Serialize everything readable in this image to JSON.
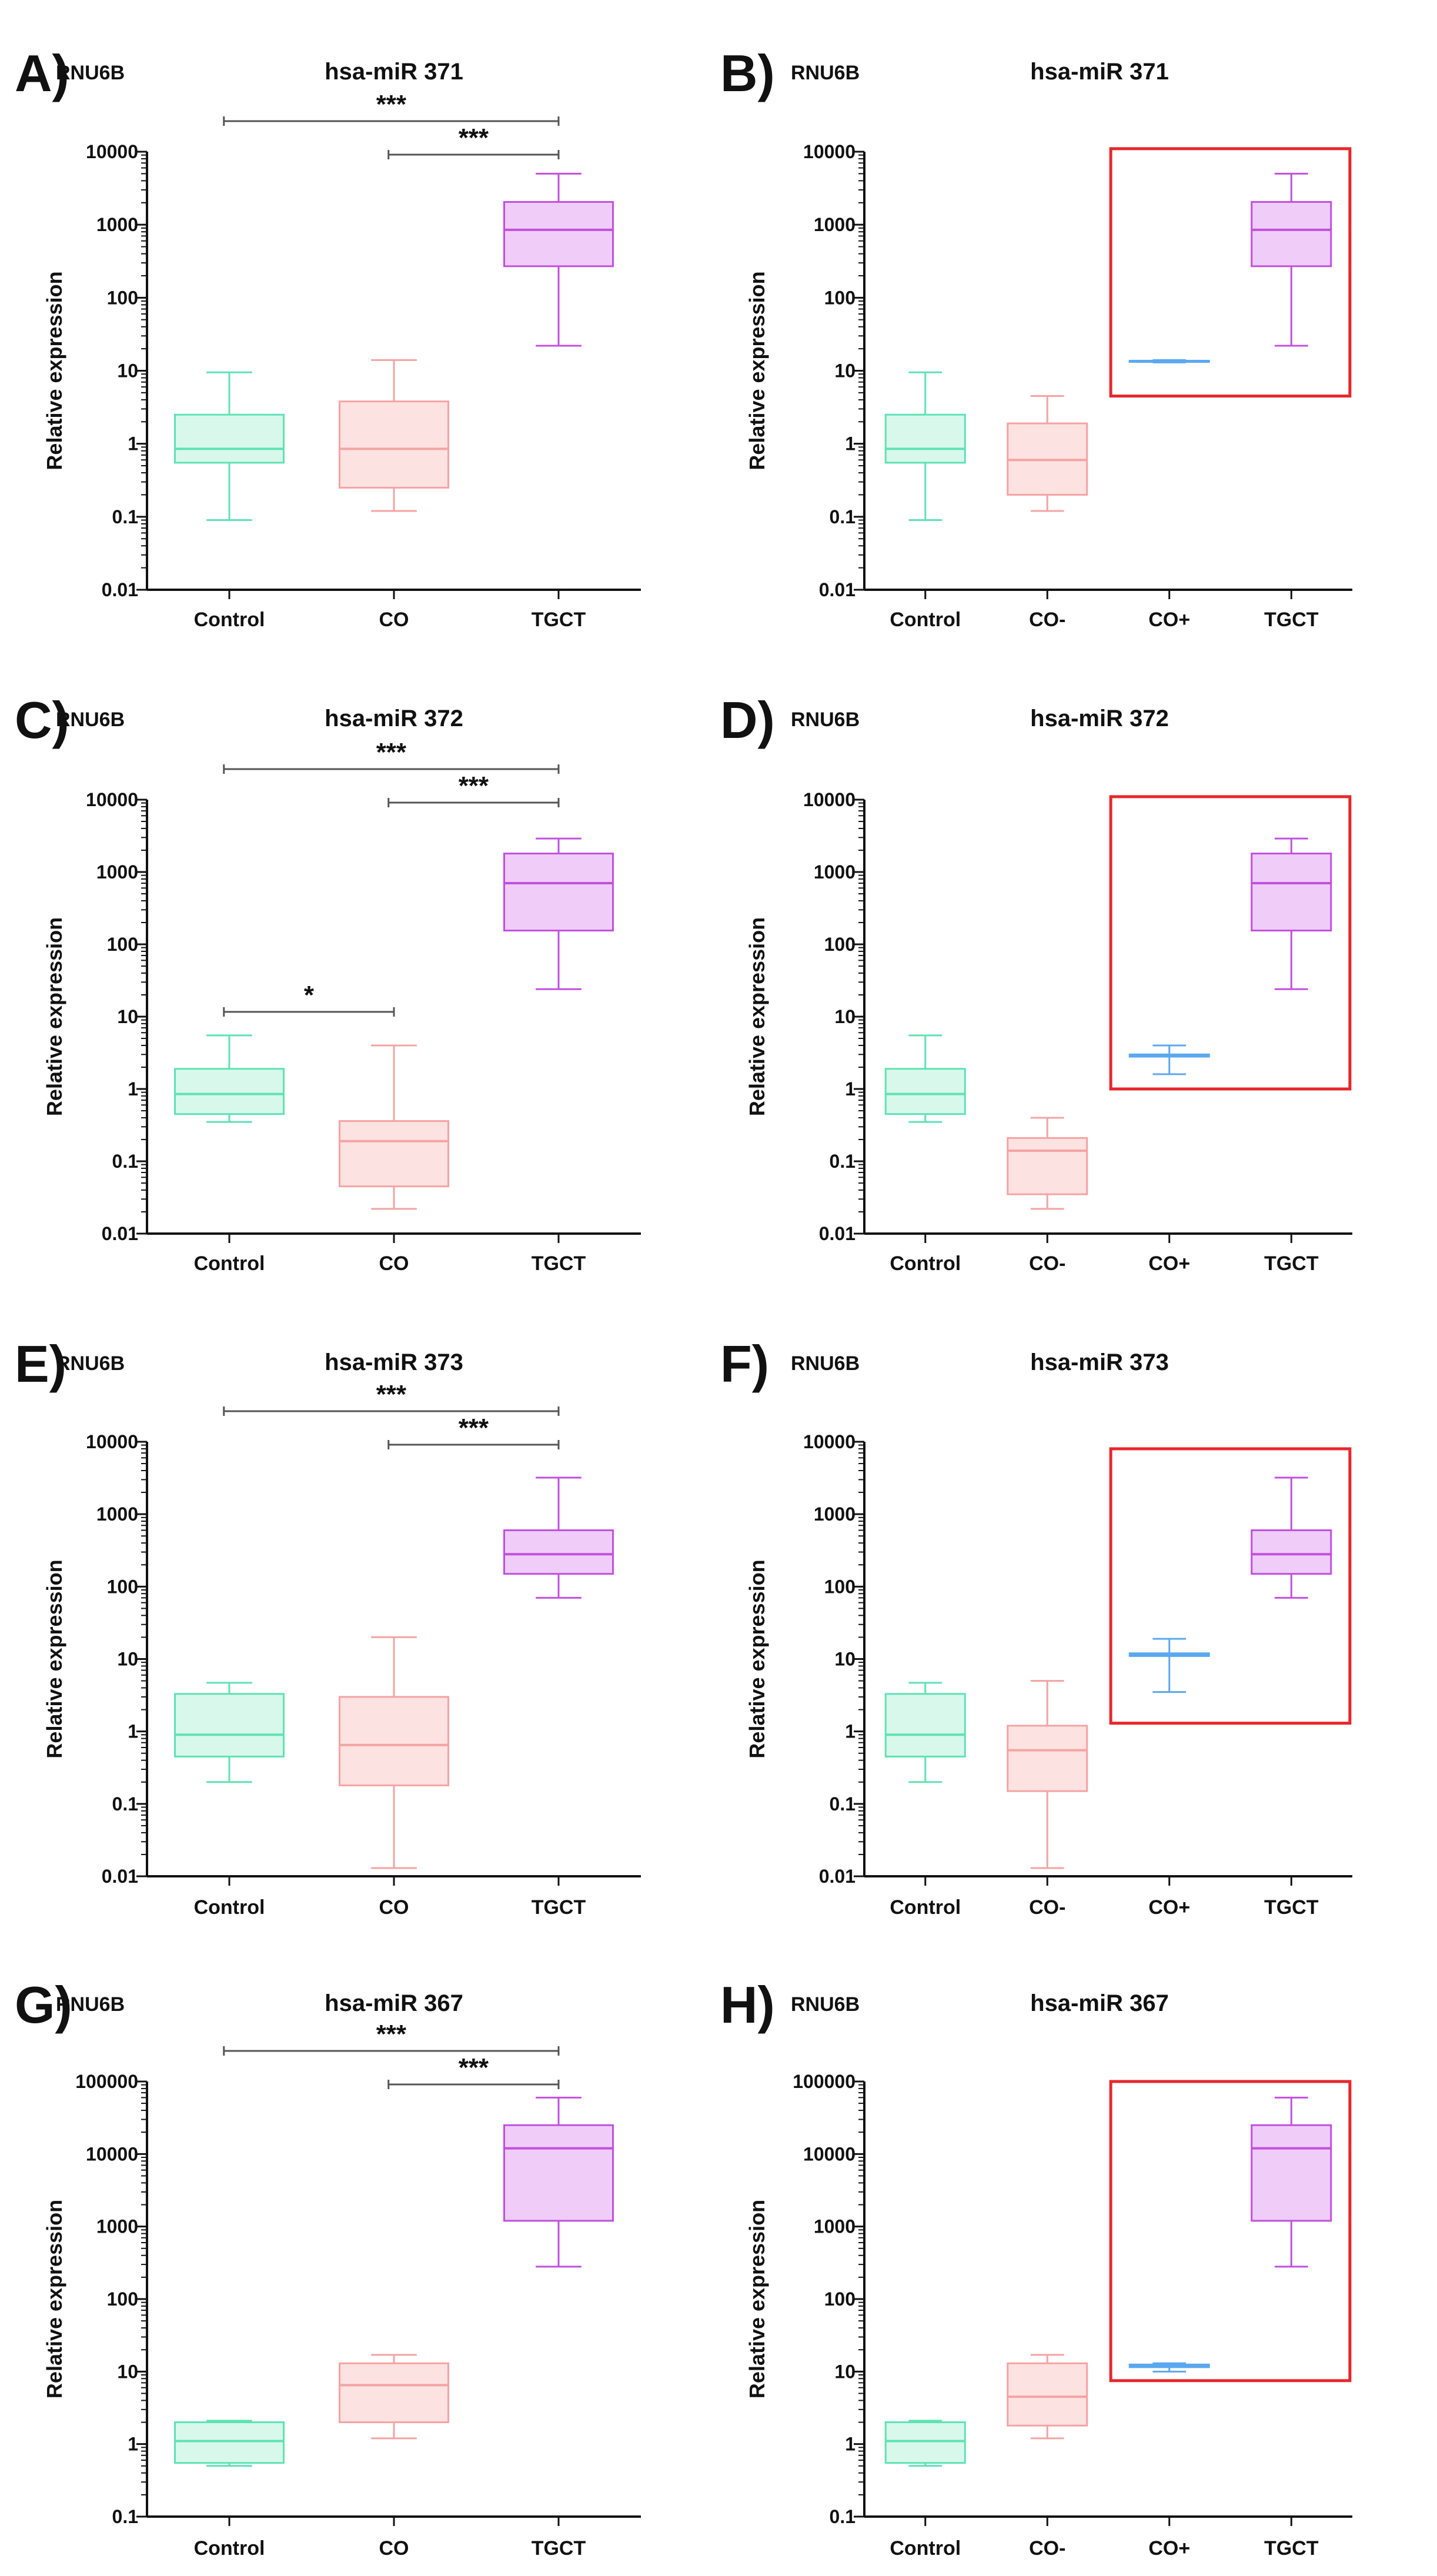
{
  "chart_data": [
    {
      "type": "box",
      "panel_label": "A)",
      "reference": "RNU6B",
      "title": "hsa-miR 371",
      "ylabel": "Relative expression",
      "yscale": "log",
      "ylim": [
        0.01,
        10000
      ],
      "yticks": [
        "0.01",
        "0.1",
        "1",
        "10",
        "100",
        "1000",
        "10000"
      ],
      "categories": [
        "Control",
        "CO",
        "TGCT"
      ],
      "colors": [
        "#5de3b4",
        "#f5a3a3",
        "#c24fe0"
      ],
      "fills": [
        "#d9f8ec",
        "#fde2e2",
        "#efcdf8"
      ],
      "boxes": [
        {
          "min": 0.09,
          "q1": 0.55,
          "median": 0.85,
          "q3": 2.5,
          "max": 9.5
        },
        {
          "min": 0.12,
          "q1": 0.25,
          "median": 0.85,
          "q3": 3.8,
          "max": 14
        },
        {
          "min": 22,
          "q1": 270,
          "median": 850,
          "q3": 2050,
          "max": 5000
        }
      ],
      "significance": [
        {
          "from": 0,
          "to": 2,
          "label": "***"
        },
        {
          "from": 1,
          "to": 2,
          "label": "***"
        }
      ],
      "highlight": null
    },
    {
      "type": "box",
      "panel_label": "B)",
      "reference": "RNU6B",
      "title": "hsa-miR 371",
      "ylabel": "Relative expression",
      "yscale": "log",
      "ylim": [
        0.01,
        10000
      ],
      "yticks": [
        "0.01",
        "0.1",
        "1",
        "10",
        "100",
        "1000",
        "10000"
      ],
      "categories": [
        "Control",
        "CO-",
        "CO+",
        "TGCT"
      ],
      "colors": [
        "#5de3b4",
        "#f5a3a3",
        "#5aa8f0",
        "#c24fe0"
      ],
      "fills": [
        "#d9f8ec",
        "#fde2e2",
        "#dcecfd",
        "#efcdf8"
      ],
      "boxes": [
        {
          "min": 0.09,
          "q1": 0.55,
          "median": 0.85,
          "q3": 2.5,
          "max": 9.5
        },
        {
          "min": 0.12,
          "q1": 0.2,
          "median": 0.6,
          "q3": 1.9,
          "max": 4.5
        },
        {
          "min": 13,
          "q1": 13.3,
          "median": 13.5,
          "q3": 13.7,
          "max": 14
        },
        {
          "min": 22,
          "q1": 270,
          "median": 850,
          "q3": 2050,
          "max": 5000
        }
      ],
      "significance": [],
      "highlight": {
        "from": 2,
        "to": 3,
        "ymin": 4.5,
        "ymax": 11000
      }
    },
    {
      "type": "box",
      "panel_label": "C)",
      "reference": "RNU6B",
      "title": "hsa-miR 372",
      "ylabel": "Relative expression",
      "yscale": "log",
      "ylim": [
        0.01,
        10000
      ],
      "yticks": [
        "0.01",
        "0.1",
        "1",
        "10",
        "100",
        "1000",
        "10000"
      ],
      "categories": [
        "Control",
        "CO",
        "TGCT"
      ],
      "colors": [
        "#5de3b4",
        "#f5a3a3",
        "#c24fe0"
      ],
      "fills": [
        "#d9f8ec",
        "#fde2e2",
        "#efcdf8"
      ],
      "boxes": [
        {
          "min": 0.35,
          "q1": 0.45,
          "median": 0.85,
          "q3": 1.9,
          "max": 5.5
        },
        {
          "min": 0.022,
          "q1": 0.045,
          "median": 0.19,
          "q3": 0.36,
          "max": 4
        },
        {
          "min": 24,
          "q1": 155,
          "median": 700,
          "q3": 1800,
          "max": 2900
        }
      ],
      "significance": [
        {
          "from": 0,
          "to": 2,
          "label": "***"
        },
        {
          "from": 1,
          "to": 2,
          "label": "***"
        },
        {
          "from": 0,
          "to": 1,
          "label": "*"
        }
      ],
      "highlight": null
    },
    {
      "type": "box",
      "panel_label": "D)",
      "reference": "RNU6B",
      "title": "hsa-miR 372",
      "ylabel": "Relative expression",
      "yscale": "log",
      "ylim": [
        0.01,
        10000
      ],
      "yticks": [
        "0.01",
        "0.1",
        "1",
        "10",
        "100",
        "1000",
        "10000"
      ],
      "categories": [
        "Control",
        "CO-",
        "CO+",
        "TGCT"
      ],
      "colors": [
        "#5de3b4",
        "#f5a3a3",
        "#5aa8f0",
        "#c24fe0"
      ],
      "fills": [
        "#d9f8ec",
        "#fde2e2",
        "#dcecfd",
        "#efcdf8"
      ],
      "boxes": [
        {
          "min": 0.35,
          "q1": 0.45,
          "median": 0.85,
          "q3": 1.9,
          "max": 5.5
        },
        {
          "min": 0.022,
          "q1": 0.035,
          "median": 0.14,
          "q3": 0.21,
          "max": 0.4
        },
        {
          "min": 1.6,
          "q1": 2.8,
          "median": 2.9,
          "q3": 3.0,
          "max": 4.0
        },
        {
          "min": 24,
          "q1": 155,
          "median": 700,
          "q3": 1800,
          "max": 2900
        }
      ],
      "significance": [],
      "highlight": {
        "from": 2,
        "to": 3,
        "ymin": 1,
        "ymax": 11000
      }
    },
    {
      "type": "box",
      "panel_label": "E)",
      "reference": "RNU6B",
      "title": "hsa-miR 373",
      "ylabel": "Relative expression",
      "yscale": "log",
      "ylim": [
        0.01,
        10000
      ],
      "yticks": [
        "0.01",
        "0.1",
        "1",
        "10",
        "100",
        "1000",
        "10000"
      ],
      "categories": [
        "Control",
        "CO",
        "TGCT"
      ],
      "colors": [
        "#5de3b4",
        "#f5a3a3",
        "#c24fe0"
      ],
      "fills": [
        "#d9f8ec",
        "#fde2e2",
        "#efcdf8"
      ],
      "boxes": [
        {
          "min": 0.2,
          "q1": 0.45,
          "median": 0.9,
          "q3": 3.3,
          "max": 4.7
        },
        {
          "min": 0.013,
          "q1": 0.18,
          "median": 0.65,
          "q3": 3.0,
          "max": 20
        },
        {
          "min": 70,
          "q1": 150,
          "median": 280,
          "q3": 600,
          "max": 3200
        }
      ],
      "significance": [
        {
          "from": 0,
          "to": 2,
          "label": "***"
        },
        {
          "from": 1,
          "to": 2,
          "label": "***"
        }
      ],
      "highlight": null
    },
    {
      "type": "box",
      "panel_label": "F)",
      "reference": "RNU6B",
      "title": "hsa-miR 373",
      "ylabel": "Relative expression",
      "yscale": "log",
      "ylim": [
        0.01,
        10000
      ],
      "yticks": [
        "0.01",
        "0.1",
        "1",
        "10",
        "100",
        "1000",
        "10000"
      ],
      "categories": [
        "Control",
        "CO-",
        "CO+",
        "TGCT"
      ],
      "colors": [
        "#5de3b4",
        "#f5a3a3",
        "#5aa8f0",
        "#c24fe0"
      ],
      "fills": [
        "#d9f8ec",
        "#fde2e2",
        "#dcecfd",
        "#efcdf8"
      ],
      "boxes": [
        {
          "min": 0.2,
          "q1": 0.45,
          "median": 0.9,
          "q3": 3.3,
          "max": 4.7
        },
        {
          "min": 0.013,
          "q1": 0.15,
          "median": 0.55,
          "q3": 1.2,
          "max": 5
        },
        {
          "min": 3.5,
          "q1": 11,
          "median": 11.5,
          "q3": 12,
          "max": 19
        },
        {
          "min": 70,
          "q1": 150,
          "median": 280,
          "q3": 600,
          "max": 3200
        }
      ],
      "significance": [],
      "highlight": {
        "from": 2,
        "to": 3,
        "ymin": 1.3,
        "ymax": 8000
      }
    },
    {
      "type": "box",
      "panel_label": "G)",
      "reference": "RNU6B",
      "title": "hsa-miR 367",
      "ylabel": "Relative expression",
      "yscale": "log",
      "ylim": [
        0.1,
        100000
      ],
      "yticks": [
        "0.1",
        "1",
        "10",
        "100",
        "1000",
        "10000",
        "100000"
      ],
      "categories": [
        "Control",
        "CO",
        "TGCT"
      ],
      "colors": [
        "#5de3b4",
        "#f5a3a3",
        "#c24fe0"
      ],
      "fills": [
        "#d9f8ec",
        "#fde2e2",
        "#efcdf8"
      ],
      "boxes": [
        {
          "min": 0.5,
          "q1": 0.55,
          "median": 1.1,
          "q3": 2.0,
          "max": 2.1
        },
        {
          "min": 1.2,
          "q1": 2.0,
          "median": 6.5,
          "q3": 13,
          "max": 17
        },
        {
          "min": 280,
          "q1": 1200,
          "median": 12000,
          "q3": 25000,
          "max": 60000
        }
      ],
      "significance": [
        {
          "from": 0,
          "to": 2,
          "label": "***"
        },
        {
          "from": 1,
          "to": 2,
          "label": "***"
        }
      ],
      "highlight": null
    },
    {
      "type": "box",
      "panel_label": "H)",
      "reference": "RNU6B",
      "title": "hsa-miR 367",
      "ylabel": "Relative expression",
      "yscale": "log",
      "ylim": [
        0.1,
        100000
      ],
      "yticks": [
        "0.1",
        "1",
        "10",
        "100",
        "1000",
        "10000",
        "100000"
      ],
      "categories": [
        "Control",
        "CO-",
        "CO+",
        "TGCT"
      ],
      "colors": [
        "#5de3b4",
        "#f5a3a3",
        "#5aa8f0",
        "#c24fe0"
      ],
      "fills": [
        "#d9f8ec",
        "#fde2e2",
        "#dcecfd",
        "#efcdf8"
      ],
      "boxes": [
        {
          "min": 0.5,
          "q1": 0.55,
          "median": 1.1,
          "q3": 2.0,
          "max": 2.1
        },
        {
          "min": 1.2,
          "q1": 1.8,
          "median": 4.5,
          "q3": 13,
          "max": 17
        },
        {
          "min": 10,
          "q1": 11.5,
          "median": 12,
          "q3": 12.5,
          "max": 13
        },
        {
          "min": 280,
          "q1": 1200,
          "median": 12000,
          "q3": 25000,
          "max": 60000
        }
      ],
      "significance": [],
      "highlight": {
        "from": 2,
        "to": 3,
        "ymin": 7.5,
        "ymax": 100000
      }
    }
  ],
  "highlight_color": "#e8262b"
}
